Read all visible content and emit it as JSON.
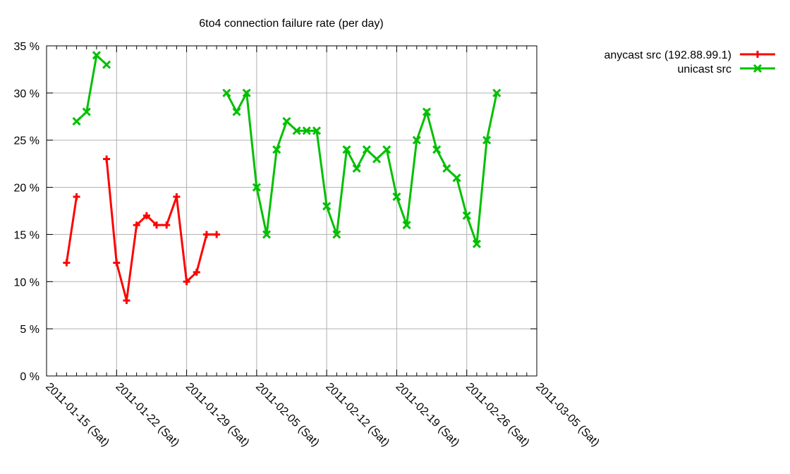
{
  "chart_data": {
    "type": "line",
    "title": "6to4 connection failure rate (per day)",
    "xlabel": "",
    "ylabel": "",
    "ylim": [
      0,
      35
    ],
    "y_ticks": [
      "0 %",
      "5 %",
      "10 %",
      "15 %",
      "20 %",
      "25 %",
      "30 %",
      "35 %"
    ],
    "y_tick_values": [
      0,
      5,
      10,
      15,
      20,
      25,
      30,
      35
    ],
    "x_range": [
      "2011-01-15",
      "2011-03-05"
    ],
    "x_ticks": [
      "2011-01-15 (Sat)",
      "2011-01-22 (Sat)",
      "2011-01-29 (Sat)",
      "2011-02-05 (Sat)",
      "2011-02-12 (Sat)",
      "2011-02-19 (Sat)",
      "2011-02-26 (Sat)",
      "2011-03-05 (Sat)"
    ],
    "grid": true,
    "legend_position": "top-right outside",
    "series": [
      {
        "name": "anycast src (192.88.99.1)",
        "color": "#ff0000",
        "marker": "plus",
        "segments": [
          [
            {
              "x": "2011-01-17",
              "day": 2,
              "y": 12
            },
            {
              "x": "2011-01-18",
              "day": 3,
              "y": 19
            }
          ],
          [
            {
              "x": "2011-01-21",
              "day": 6,
              "y": 23
            },
            {
              "x": "2011-01-22",
              "day": 7,
              "y": 12
            },
            {
              "x": "2011-01-23",
              "day": 8,
              "y": 8
            },
            {
              "x": "2011-01-24",
              "day": 9,
              "y": 16
            },
            {
              "x": "2011-01-25",
              "day": 10,
              "y": 17
            },
            {
              "x": "2011-01-26",
              "day": 11,
              "y": 16
            },
            {
              "x": "2011-01-27",
              "day": 12,
              "y": 16
            },
            {
              "x": "2011-01-28",
              "day": 13,
              "y": 19
            },
            {
              "x": "2011-01-29",
              "day": 14,
              "y": 10
            },
            {
              "x": "2011-01-30",
              "day": 15,
              "y": 11
            },
            {
              "x": "2011-01-31",
              "day": 16,
              "y": 15
            },
            {
              "x": "2011-02-01",
              "day": 17,
              "y": 15
            }
          ]
        ]
      },
      {
        "name": "unicast src",
        "color": "#00c000",
        "marker": "cross",
        "segments": [
          [
            {
              "x": "2011-01-18",
              "day": 3,
              "y": 27
            },
            {
              "x": "2011-01-19",
              "day": 4,
              "y": 28
            },
            {
              "x": "2011-01-20",
              "day": 5,
              "y": 34
            },
            {
              "x": "2011-01-21",
              "day": 6,
              "y": 33
            }
          ],
          [
            {
              "x": "2011-02-02",
              "day": 18,
              "y": 30
            },
            {
              "x": "2011-02-03",
              "day": 19,
              "y": 28
            },
            {
              "x": "2011-02-04",
              "day": 20,
              "y": 30
            },
            {
              "x": "2011-02-05",
              "day": 21,
              "y": 20
            },
            {
              "x": "2011-02-06",
              "day": 22,
              "y": 15
            },
            {
              "x": "2011-02-07",
              "day": 23,
              "y": 24
            },
            {
              "x": "2011-02-08",
              "day": 24,
              "y": 27
            },
            {
              "x": "2011-02-09",
              "day": 25,
              "y": 26
            },
            {
              "x": "2011-02-10",
              "day": 26,
              "y": 26
            },
            {
              "x": "2011-02-11",
              "day": 27,
              "y": 26
            },
            {
              "x": "2011-02-12",
              "day": 28,
              "y": 18
            },
            {
              "x": "2011-02-13",
              "day": 29,
              "y": 15
            },
            {
              "x": "2011-02-14",
              "day": 30,
              "y": 24
            },
            {
              "x": "2011-02-15",
              "day": 31,
              "y": 22
            },
            {
              "x": "2011-02-16",
              "day": 32,
              "y": 24
            },
            {
              "x": "2011-02-17",
              "day": 33,
              "y": 23
            },
            {
              "x": "2011-02-18",
              "day": 34,
              "y": 24
            },
            {
              "x": "2011-02-19",
              "day": 35,
              "y": 19
            },
            {
              "x": "2011-02-20",
              "day": 36,
              "y": 16
            },
            {
              "x": "2011-02-21",
              "day": 37,
              "y": 25
            },
            {
              "x": "2011-02-22",
              "day": 38,
              "y": 28
            },
            {
              "x": "2011-02-23",
              "day": 39,
              "y": 24
            },
            {
              "x": "2011-02-24",
              "day": 40,
              "y": 22
            },
            {
              "x": "2011-02-25",
              "day": 41,
              "y": 21
            },
            {
              "x": "2011-02-26",
              "day": 42,
              "y": 17
            },
            {
              "x": "2011-02-27",
              "day": 43,
              "y": 14
            },
            {
              "x": "2011-02-28",
              "day": 44,
              "y": 25
            },
            {
              "x": "2011-03-01",
              "day": 45,
              "y": 30
            }
          ]
        ]
      }
    ]
  },
  "legend": {
    "items": [
      {
        "label": "anycast src (192.88.99.1)",
        "color": "#ff0000",
        "marker": "plus"
      },
      {
        "label": "unicast src",
        "color": "#00c000",
        "marker": "cross"
      }
    ]
  }
}
